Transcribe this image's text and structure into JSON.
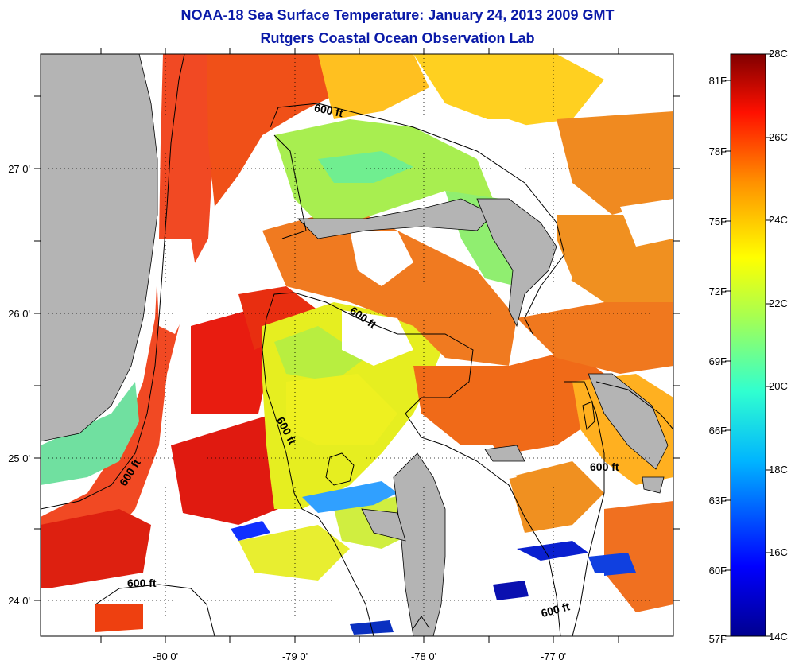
{
  "title": {
    "line1": "NOAA-18 Sea Surface Temperature:  January 24, 2013 2009 GMT",
    "line2": "Rutgers Coastal Ocean Observation Lab"
  },
  "colors": {
    "title": "#0a1aa8",
    "land": "#b4b4b4",
    "cloud": "#ffffff"
  },
  "map": {
    "lon_labels": [
      "-80 0'",
      "-79 0'",
      "-78 0'",
      "-77 0'"
    ],
    "lat_labels": [
      "27 0'",
      "26 0'",
      "25 0'",
      "24 0'"
    ],
    "contour_labels": [
      "600 ft",
      "600 ft",
      "600 ft",
      "600 ft",
      "600 ft",
      "600 ft"
    ]
  },
  "colorbar": {
    "celsius": [
      "28C",
      "26C",
      "24C",
      "22C",
      "20C",
      "18C",
      "16C",
      "14C"
    ],
    "fahrenheit": [
      "81F",
      "78F",
      "75F",
      "72F",
      "69F",
      "66F",
      "63F",
      "60F",
      "57F"
    ],
    "range_c": [
      14,
      28
    ]
  }
}
